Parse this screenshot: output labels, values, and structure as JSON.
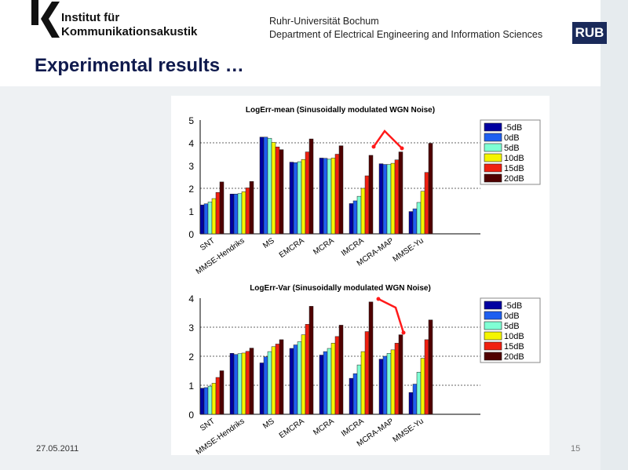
{
  "header": {
    "institute_line1": "Institut für",
    "institute_line2": "Kommunikationsakustik",
    "university": "Ruhr-Universität Bochum",
    "department": "Department of Electrical Engineering and Information Sciences",
    "logo_text": "RUB"
  },
  "slide": {
    "title": "Experimental results …",
    "date": "27.05.2011",
    "page_number": "15"
  },
  "chart_data": [
    {
      "type": "bar",
      "title": "LogErr-mean (Sinusoidally modulated WGN Noise)",
      "ylim": [
        0,
        5
      ],
      "yticks": [
        0,
        1,
        2,
        3,
        4,
        5
      ],
      "grid": "dotted horizontal at 2 and 4",
      "legend_placement": "right",
      "categories": [
        "SNT",
        "MMSE-Hendriks",
        "MS",
        "EMCRA",
        "MCRA",
        "IMCRA",
        "MCRA-MAP",
        "MMSE-Yu"
      ],
      "series": [
        {
          "name": "-5dB",
          "color": "#0000a0",
          "values": [
            1.27,
            1.75,
            4.25,
            3.15,
            3.33,
            1.33,
            3.08,
            0.98
          ]
        },
        {
          "name": "0dB",
          "color": "#1e5ff0",
          "values": [
            1.32,
            1.75,
            4.25,
            3.13,
            3.32,
            1.45,
            3.05,
            1.1
          ]
        },
        {
          "name": "5dB",
          "color": "#7fffd4",
          "values": [
            1.4,
            1.77,
            4.2,
            3.17,
            3.28,
            1.65,
            3.05,
            1.38
          ]
        },
        {
          "name": "10dB",
          "color": "#f5f500",
          "values": [
            1.55,
            1.85,
            4.02,
            3.27,
            3.33,
            2.0,
            3.1,
            1.87
          ]
        },
        {
          "name": "15dB",
          "color": "#f02010",
          "values": [
            1.82,
            2.02,
            3.82,
            3.6,
            3.5,
            2.55,
            3.25,
            2.7
          ]
        },
        {
          "name": "20dB",
          "color": "#500000",
          "values": [
            2.28,
            2.3,
            3.7,
            4.17,
            3.87,
            3.45,
            3.6,
            3.98
          ]
        }
      ]
    },
    {
      "type": "bar",
      "title": "LogErr-Var (Sinusoidally modulated WGN Noise)",
      "ylim": [
        0,
        4
      ],
      "yticks": [
        0,
        1,
        2,
        3,
        4
      ],
      "grid": "dotted horizontal at 1, 2 and 3",
      "legend_placement": "right",
      "categories": [
        "SNT",
        "MMSE-Hendriks",
        "MS",
        "EMCRA",
        "MCRA",
        "IMCRA",
        "MCRA-MAP",
        "MMSE-Yu"
      ],
      "series": [
        {
          "name": "-5dB",
          "color": "#0000a0",
          "values": [
            0.9,
            2.1,
            1.77,
            2.27,
            2.04,
            1.24,
            1.9,
            0.75
          ]
        },
        {
          "name": "0dB",
          "color": "#1e5ff0",
          "values": [
            0.92,
            2.06,
            1.98,
            2.39,
            2.16,
            1.4,
            2.0,
            1.04
          ]
        },
        {
          "name": "5dB",
          "color": "#7fffd4",
          "values": [
            0.97,
            2.09,
            2.16,
            2.5,
            2.27,
            1.7,
            2.1,
            1.45
          ]
        },
        {
          "name": "10dB",
          "color": "#f5f500",
          "values": [
            1.07,
            2.11,
            2.33,
            2.74,
            2.45,
            2.16,
            2.22,
            1.93
          ]
        },
        {
          "name": "15dB",
          "color": "#f02010",
          "values": [
            1.27,
            2.17,
            2.42,
            3.1,
            2.68,
            2.85,
            2.45,
            2.57
          ]
        },
        {
          "name": "20dB",
          "color": "#500000",
          "values": [
            1.5,
            2.28,
            2.57,
            3.72,
            3.07,
            3.87,
            2.74,
            3.25
          ]
        }
      ]
    }
  ],
  "colors": {
    "title": "#0f1a4d",
    "logo_bg": "#1a2a5a",
    "annotation_arrow": "#ff1a1a"
  }
}
